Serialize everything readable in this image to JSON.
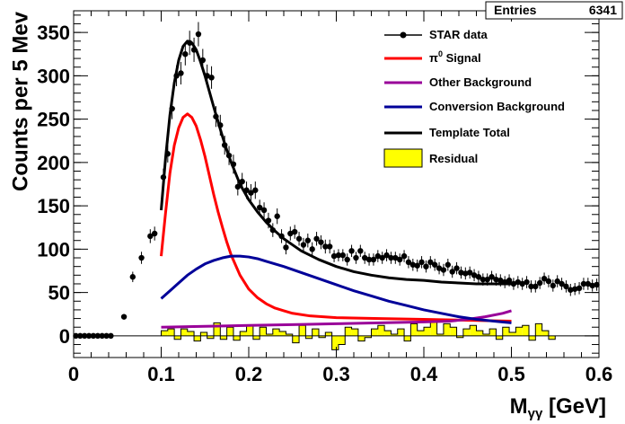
{
  "chart_data": {
    "type": "scatter",
    "xlabel_main": "M",
    "xlabel_sub": "γγ",
    "xlabel_unit": " [GeV]",
    "ylabel": "Counts per 5 Mev",
    "xlim": [
      0,
      0.6
    ],
    "ylim": [
      -25,
      375
    ],
    "x_ticks": [
      0,
      0.1,
      0.2,
      0.3,
      0.4,
      0.5,
      0.6
    ],
    "x_tick_labels": [
      "0",
      "0.1",
      "0.2",
      "0.3",
      "0.4",
      "0.5",
      "0.6"
    ],
    "y_ticks": [
      0,
      50,
      100,
      150,
      200,
      250,
      300,
      350
    ],
    "y_tick_labels": [
      "0",
      "50",
      "100",
      "150",
      "200",
      "250",
      "300",
      "350"
    ],
    "stats": {
      "label": "Entries",
      "value": "6341"
    },
    "legend": {
      "placement": "top-right",
      "entries": [
        {
          "label": "STAR data",
          "style": "marker",
          "color": "#000000"
        },
        {
          "label_main": "π",
          "label_sup": "0",
          "label_rest": " Signal",
          "style": "line",
          "color": "#ff0000"
        },
        {
          "label": "Other Background",
          "style": "line",
          "color": "#990099"
        },
        {
          "label": "Conversion Background",
          "style": "line",
          "color": "#000099"
        },
        {
          "label": "Template Total",
          "style": "line",
          "color": "#000000"
        },
        {
          "label": "Residual",
          "style": "box",
          "color": "#ffff00"
        }
      ]
    },
    "series": [
      {
        "name": "STAR data",
        "type": "points",
        "color": "#000000",
        "points": [
          [
            0.0025,
            0,
            0
          ],
          [
            0.0075,
            0,
            0
          ],
          [
            0.0125,
            0,
            0
          ],
          [
            0.0175,
            0,
            0
          ],
          [
            0.0225,
            0,
            0
          ],
          [
            0.0275,
            0,
            0
          ],
          [
            0.0325,
            0,
            0
          ],
          [
            0.0375,
            0,
            0
          ],
          [
            0.0425,
            0,
            0
          ],
          [
            0.0575,
            22,
            3
          ],
          [
            0.0675,
            68,
            6
          ],
          [
            0.0775,
            90,
            7
          ],
          [
            0.0875,
            115,
            8
          ],
          [
            0.0925,
            118,
            8
          ],
          [
            0.1025,
            183,
            10
          ],
          [
            0.1075,
            210,
            10
          ],
          [
            0.1125,
            262,
            12
          ],
          [
            0.1175,
            300,
            12
          ],
          [
            0.1225,
            303,
            13
          ],
          [
            0.1275,
            325,
            13
          ],
          [
            0.1325,
            338,
            14
          ],
          [
            0.1375,
            330,
            14
          ],
          [
            0.1425,
            348,
            14
          ],
          [
            0.1475,
            318,
            13
          ],
          [
            0.1525,
            300,
            13
          ],
          [
            0.1575,
            298,
            13
          ],
          [
            0.1625,
            253,
            12
          ],
          [
            0.1675,
            243,
            12
          ],
          [
            0.1725,
            220,
            11
          ],
          [
            0.1775,
            208,
            11
          ],
          [
            0.1825,
            198,
            11
          ],
          [
            0.1875,
            172,
            10
          ],
          [
            0.1925,
            178,
            10
          ],
          [
            0.1975,
            168,
            10
          ],
          [
            0.2025,
            165,
            10
          ],
          [
            0.2075,
            168,
            10
          ],
          [
            0.2125,
            148,
            9
          ],
          [
            0.2175,
            145,
            9
          ],
          [
            0.2225,
            133,
            9
          ],
          [
            0.2275,
            122,
            8
          ],
          [
            0.2325,
            138,
            9
          ],
          [
            0.2375,
            115,
            8
          ],
          [
            0.2425,
            102,
            8
          ],
          [
            0.2475,
            118,
            8
          ],
          [
            0.2525,
            120,
            8
          ],
          [
            0.2575,
            112,
            8
          ],
          [
            0.2625,
            105,
            8
          ],
          [
            0.2675,
            110,
            8
          ],
          [
            0.2725,
            100,
            8
          ],
          [
            0.2775,
            112,
            8
          ],
          [
            0.2825,
            108,
            8
          ],
          [
            0.2875,
            103,
            8
          ],
          [
            0.2925,
            103,
            8
          ],
          [
            0.2975,
            92,
            7
          ],
          [
            0.3025,
            93,
            7
          ],
          [
            0.3075,
            93,
            7
          ],
          [
            0.3125,
            88,
            7
          ],
          [
            0.3175,
            98,
            7
          ],
          [
            0.3225,
            90,
            7
          ],
          [
            0.3275,
            98,
            7
          ],
          [
            0.3325,
            90,
            7
          ],
          [
            0.3375,
            88,
            7
          ],
          [
            0.3425,
            88,
            7
          ],
          [
            0.3475,
            92,
            7
          ],
          [
            0.3525,
            90,
            7
          ],
          [
            0.3575,
            93,
            7
          ],
          [
            0.3625,
            90,
            7
          ],
          [
            0.3675,
            90,
            7
          ],
          [
            0.3725,
            88,
            7
          ],
          [
            0.3775,
            92,
            7
          ],
          [
            0.3825,
            85,
            7
          ],
          [
            0.3875,
            82,
            7
          ],
          [
            0.3925,
            81,
            7
          ],
          [
            0.3975,
            85,
            7
          ],
          [
            0.4025,
            80,
            7
          ],
          [
            0.4075,
            85,
            7
          ],
          [
            0.4125,
            82,
            7
          ],
          [
            0.4175,
            78,
            7
          ],
          [
            0.4225,
            76,
            7
          ],
          [
            0.4275,
            82,
            7
          ],
          [
            0.4325,
            74,
            7
          ],
          [
            0.4375,
            78,
            7
          ],
          [
            0.4425,
            73,
            7
          ],
          [
            0.4475,
            72,
            7
          ],
          [
            0.4525,
            73,
            7
          ],
          [
            0.4575,
            70,
            7
          ],
          [
            0.4625,
            68,
            7
          ],
          [
            0.4675,
            65,
            7
          ],
          [
            0.4725,
            65,
            7
          ],
          [
            0.4775,
            68,
            7
          ],
          [
            0.4825,
            65,
            7
          ],
          [
            0.4875,
            64,
            7
          ],
          [
            0.4925,
            62,
            7
          ],
          [
            0.4975,
            64,
            7
          ],
          [
            0.5025,
            60,
            7
          ],
          [
            0.5075,
            62,
            7
          ],
          [
            0.5125,
            60,
            7
          ],
          [
            0.5175,
            62,
            7
          ],
          [
            0.5225,
            57,
            7
          ],
          [
            0.5275,
            57,
            7
          ],
          [
            0.5325,
            61,
            7
          ],
          [
            0.5375,
            66,
            7
          ],
          [
            0.5425,
            63,
            7
          ],
          [
            0.5475,
            58,
            7
          ],
          [
            0.5525,
            63,
            7
          ],
          [
            0.5575,
            60,
            7
          ],
          [
            0.5625,
            57,
            7
          ],
          [
            0.5675,
            53,
            7
          ],
          [
            0.5725,
            54,
            7
          ],
          [
            0.5775,
            55,
            7
          ],
          [
            0.5825,
            60,
            7
          ],
          [
            0.5875,
            60,
            7
          ],
          [
            0.5925,
            58,
            7
          ],
          [
            0.5975,
            59,
            7
          ]
        ]
      },
      {
        "name": "π0 Signal",
        "type": "line",
        "color": "#ff0000",
        "points": [
          [
            0.1,
            92
          ],
          [
            0.105,
            142
          ],
          [
            0.11,
            188
          ],
          [
            0.115,
            220
          ],
          [
            0.12,
            240
          ],
          [
            0.125,
            252
          ],
          [
            0.13,
            256
          ],
          [
            0.135,
            252
          ],
          [
            0.14,
            242
          ],
          [
            0.145,
            226
          ],
          [
            0.15,
            207
          ],
          [
            0.155,
            185
          ],
          [
            0.16,
            163
          ],
          [
            0.165,
            143
          ],
          [
            0.17,
            125
          ],
          [
            0.175,
            108
          ],
          [
            0.18,
            93
          ],
          [
            0.19,
            70
          ],
          [
            0.2,
            54
          ],
          [
            0.21,
            44
          ],
          [
            0.22,
            37
          ],
          [
            0.23,
            32
          ],
          [
            0.24,
            29
          ],
          [
            0.25,
            26
          ],
          [
            0.27,
            23
          ],
          [
            0.3,
            21
          ],
          [
            0.35,
            20
          ],
          [
            0.4,
            19
          ],
          [
            0.45,
            18
          ],
          [
            0.5,
            17
          ]
        ]
      },
      {
        "name": "Other Background",
        "type": "line",
        "color": "#990099",
        "points": [
          [
            0.1,
            10
          ],
          [
            0.15,
            11
          ],
          [
            0.2,
            12
          ],
          [
            0.25,
            13
          ],
          [
            0.3,
            14
          ],
          [
            0.35,
            15
          ],
          [
            0.4,
            16
          ],
          [
            0.43,
            17
          ],
          [
            0.45,
            19
          ],
          [
            0.47,
            22
          ],
          [
            0.49,
            26
          ],
          [
            0.5,
            29
          ]
        ]
      },
      {
        "name": "Conversion Background",
        "type": "line",
        "color": "#000099",
        "points": [
          [
            0.1,
            43
          ],
          [
            0.11,
            52
          ],
          [
            0.12,
            61
          ],
          [
            0.13,
            70
          ],
          [
            0.14,
            77
          ],
          [
            0.15,
            83
          ],
          [
            0.16,
            87
          ],
          [
            0.17,
            90
          ],
          [
            0.18,
            92
          ],
          [
            0.19,
            92
          ],
          [
            0.2,
            91
          ],
          [
            0.21,
            89
          ],
          [
            0.22,
            86
          ],
          [
            0.24,
            80
          ],
          [
            0.26,
            73
          ],
          [
            0.28,
            66
          ],
          [
            0.3,
            59
          ],
          [
            0.32,
            52
          ],
          [
            0.34,
            46
          ],
          [
            0.36,
            40
          ],
          [
            0.38,
            35
          ],
          [
            0.4,
            30
          ],
          [
            0.42,
            26
          ],
          [
            0.44,
            22
          ],
          [
            0.46,
            19
          ],
          [
            0.48,
            17
          ],
          [
            0.5,
            15
          ]
        ]
      },
      {
        "name": "Template Total",
        "type": "line",
        "color": "#000000",
        "points": [
          [
            0.1,
            145
          ],
          [
            0.105,
            205
          ],
          [
            0.11,
            255
          ],
          [
            0.115,
            292
          ],
          [
            0.12,
            318
          ],
          [
            0.125,
            334
          ],
          [
            0.13,
            340
          ],
          [
            0.135,
            338
          ],
          [
            0.14,
            330
          ],
          [
            0.145,
            316
          ],
          [
            0.15,
            300
          ],
          [
            0.155,
            282
          ],
          [
            0.16,
            264
          ],
          [
            0.165,
            247
          ],
          [
            0.17,
            230
          ],
          [
            0.175,
            214
          ],
          [
            0.18,
            200
          ],
          [
            0.19,
            175
          ],
          [
            0.2,
            157
          ],
          [
            0.21,
            143
          ],
          [
            0.22,
            131
          ],
          [
            0.23,
            121
          ],
          [
            0.24,
            112
          ],
          [
            0.25,
            105
          ],
          [
            0.26,
            98
          ],
          [
            0.28,
            88
          ],
          [
            0.3,
            80
          ],
          [
            0.32,
            74
          ],
          [
            0.34,
            70
          ],
          [
            0.36,
            67
          ],
          [
            0.38,
            65
          ],
          [
            0.4,
            64
          ],
          [
            0.42,
            62
          ],
          [
            0.44,
            61
          ],
          [
            0.46,
            60
          ],
          [
            0.48,
            60
          ],
          [
            0.5,
            60
          ]
        ]
      },
      {
        "name": "Residual",
        "type": "histogram",
        "color": "#ffff00",
        "x_start": 0.1,
        "bin_width": 0.0075,
        "values": [
          6,
          8,
          -4,
          8,
          5,
          -6,
          4,
          -3,
          15,
          -4,
          10,
          -5,
          5,
          12,
          -4,
          10,
          2,
          8,
          5,
          2,
          -8,
          12,
          -3,
          8,
          -2,
          4,
          -16,
          -10,
          10,
          8,
          -6,
          -2,
          8,
          12,
          6,
          2,
          8,
          -6,
          14,
          6,
          10,
          18,
          2,
          14,
          10,
          -2,
          8,
          12,
          6,
          2,
          8,
          -4,
          10,
          4,
          10,
          12,
          -5,
          14,
          6,
          -4
        ]
      }
    ]
  }
}
